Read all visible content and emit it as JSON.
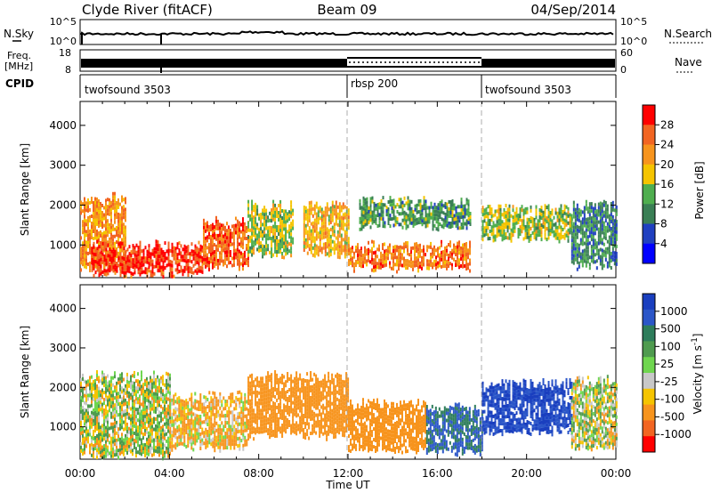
{
  "header": {
    "station": "Clyde River (fitACF)",
    "beam": "Beam 09",
    "date": "04/Sep/2014"
  },
  "noise_panel": {
    "left_label": "N.Sky",
    "right_label": "N.Search",
    "left_ticks": [
      "10^5",
      "10^0"
    ],
    "right_ticks": [
      "10^5",
      "10^0"
    ]
  },
  "freq_panel": {
    "left_label_line1": "Freq.",
    "left_label_line2": "[MHz]",
    "right_label": "Nave",
    "left_ticks": [
      "18",
      "8"
    ],
    "right_ticks": [
      "60",
      "0"
    ]
  },
  "cpid_panel": {
    "label": "CPID",
    "segments": [
      {
        "name": "twofsound 3503",
        "start_h": 0,
        "end_h": 12
      },
      {
        "name": "rbsp 200",
        "start_h": 12,
        "end_h": 18
      },
      {
        "name": "twofsound 3503",
        "start_h": 18,
        "end_h": 24
      }
    ]
  },
  "power_colorbar": {
    "label": "Power [dB]",
    "ticks": [
      "4",
      "8",
      "12",
      "16",
      "20",
      "24",
      "28"
    ],
    "colors": [
      "#0000ff",
      "#2040c0",
      "#3a7f55",
      "#4fae4f",
      "#f5c400",
      "#f7941d",
      "#f26522",
      "#ff0000"
    ]
  },
  "velocity_colorbar": {
    "label": "Velocity",
    "unit": "[m s",
    "unit_exp": "-1",
    "unit_close": "]",
    "ticks": [
      "1000",
      "500",
      "100",
      "25",
      "-25",
      "-100",
      "-500",
      "-1000"
    ],
    "colors": [
      "#1a3fbf",
      "#2b56c8",
      "#2e7d5b",
      "#4f9b4f",
      "#6fd64f",
      "#c8c8c8",
      "#f5c400",
      "#f7941d",
      "#f26522",
      "#ff0000"
    ]
  },
  "x_axis": {
    "label": "Time UT",
    "ticks": [
      "00:00",
      "04:00",
      "08:00",
      "12:00",
      "16:00",
      "20:00",
      "00:00"
    ]
  },
  "y_axis": {
    "label": "Slant Range [km]",
    "ticks": [
      "1000",
      "2000",
      "3000",
      "4000"
    ]
  },
  "chart_data": [
    {
      "type": "heatmap",
      "title": "Power",
      "xlabel": "Time UT",
      "ylabel": "Slant Range [km]",
      "xlim": [
        0,
        24
      ],
      "ylim": [
        180,
        4600
      ],
      "zlabel": "Power [dB]",
      "zlim": [
        0,
        32
      ],
      "approximate_bands": [
        {
          "t_start": 0.0,
          "t_end": 2.0,
          "r_low": 450,
          "r_high": 2200,
          "power": 22
        },
        {
          "t_start": 0.5,
          "t_end": 5.5,
          "r_low": 300,
          "r_high": 1000,
          "power": 28
        },
        {
          "t_start": 5.5,
          "t_end": 7.5,
          "r_low": 500,
          "r_high": 1600,
          "power": 26
        },
        {
          "t_start": 7.5,
          "t_end": 9.5,
          "r_low": 800,
          "r_high": 2000,
          "power": 16
        },
        {
          "t_start": 10.0,
          "t_end": 12.0,
          "r_low": 800,
          "r_high": 2000,
          "power": 20
        },
        {
          "t_start": 12.0,
          "t_end": 17.5,
          "r_low": 450,
          "r_high": 1000,
          "power": 24
        },
        {
          "t_start": 12.5,
          "t_end": 17.5,
          "r_low": 1500,
          "r_high": 2100,
          "power": 12
        },
        {
          "t_start": 18.0,
          "t_end": 22.0,
          "r_low": 1200,
          "r_high": 1900,
          "power": 16
        },
        {
          "t_start": 22.0,
          "t_end": 24.0,
          "r_low": 500,
          "r_high": 2000,
          "power": 10
        }
      ]
    },
    {
      "type": "heatmap",
      "title": "Velocity",
      "xlabel": "Time UT",
      "ylabel": "Slant Range [km]",
      "xlim": [
        0,
        24
      ],
      "ylim": [
        180,
        4600
      ],
      "zlabel": "Velocity [m s-1]",
      "approximate_bands": [
        {
          "t_start": 0.0,
          "t_end": 4.0,
          "r_low": 300,
          "r_high": 2300,
          "velocity": 25
        },
        {
          "t_start": 4.0,
          "t_end": 7.5,
          "r_low": 500,
          "r_high": 1800,
          "velocity": -100
        },
        {
          "t_start": 7.5,
          "t_end": 12.0,
          "r_low": 800,
          "r_high": 2300,
          "velocity": -300
        },
        {
          "t_start": 12.0,
          "t_end": 15.5,
          "r_low": 450,
          "r_high": 1600,
          "velocity": -300
        },
        {
          "t_start": 15.5,
          "t_end": 18.0,
          "r_low": 400,
          "r_high": 1500,
          "velocity": 500
        },
        {
          "t_start": 18.0,
          "t_end": 22.0,
          "r_low": 900,
          "r_high": 2100,
          "velocity": 800
        },
        {
          "t_start": 22.0,
          "t_end": 24.0,
          "r_low": 500,
          "r_high": 2200,
          "velocity": 25
        }
      ]
    }
  ]
}
